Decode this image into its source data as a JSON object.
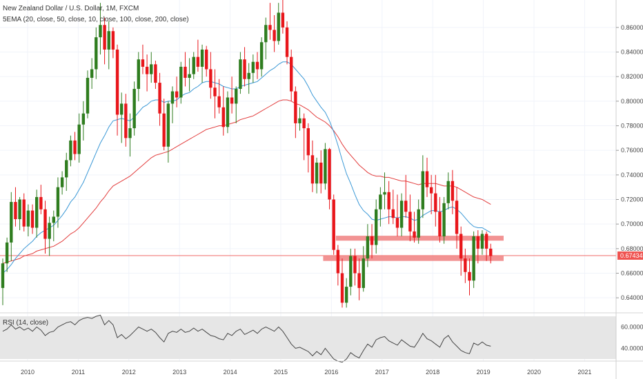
{
  "chart_data": {
    "type": "candlestick",
    "title": "New Zealand Dollar / U.S. Dollar, 1M, FXCM",
    "indicator_label": "5EMA (20, close, 50, close, 10, close, 100, close, 200, close)",
    "rsi_label": "RSI (14, close)",
    "price_axis_ticks": [
      "0.86000",
      "0.84000",
      "0.82000",
      "0.80000",
      "0.78000",
      "0.76000",
      "0.74000",
      "0.72000",
      "0.70000",
      "0.68000",
      "0.66000",
      "0.64000"
    ],
    "rsi_axis_ticks": [
      "60.0000",
      "40.0000"
    ],
    "time_axis_ticks": [
      "2010",
      "2011",
      "2012",
      "2013",
      "2014",
      "2015",
      "2016",
      "2017",
      "2018",
      "2019",
      "2020",
      "2021"
    ],
    "current_price": "0.67434",
    "ylim": [
      0.63,
      0.87
    ],
    "rsi_ylim": [
      30,
      70
    ],
    "colors": {
      "up": "#2f7d1f",
      "down": "#e8161b",
      "ema_fast": "#3a98d6",
      "ema_slow": "#e23b3b",
      "zone": "#f08080",
      "rsi_band": "#e6e6e6",
      "rsi_line": "#444444",
      "price_line": "#ef5350"
    },
    "candles": [
      [
        0.648,
        0.672,
        0.634,
        0.668
      ],
      [
        0.668,
        0.689,
        0.661,
        0.685
      ],
      [
        0.685,
        0.726,
        0.67,
        0.718
      ],
      [
        0.718,
        0.73,
        0.698,
        0.704
      ],
      [
        0.704,
        0.722,
        0.695,
        0.72
      ],
      [
        0.72,
        0.725,
        0.694,
        0.698
      ],
      [
        0.698,
        0.716,
        0.69,
        0.711
      ],
      [
        0.711,
        0.716,
        0.692,
        0.697
      ],
      [
        0.697,
        0.728,
        0.689,
        0.722
      ],
      [
        0.722,
        0.732,
        0.708,
        0.712
      ],
      [
        0.712,
        0.719,
        0.676,
        0.688
      ],
      [
        0.688,
        0.706,
        0.674,
        0.701
      ],
      [
        0.701,
        0.711,
        0.686,
        0.706
      ],
      [
        0.706,
        0.738,
        0.697,
        0.73
      ],
      [
        0.73,
        0.743,
        0.724,
        0.738
      ],
      [
        0.738,
        0.758,
        0.727,
        0.752
      ],
      [
        0.752,
        0.772,
        0.747,
        0.768
      ],
      [
        0.768,
        0.775,
        0.752,
        0.757
      ],
      [
        0.757,
        0.79,
        0.75,
        0.781
      ],
      [
        0.781,
        0.8,
        0.768,
        0.79
      ],
      [
        0.79,
        0.825,
        0.786,
        0.819
      ],
      [
        0.819,
        0.835,
        0.81,
        0.826
      ],
      [
        0.826,
        0.86,
        0.818,
        0.852
      ],
      [
        0.852,
        0.88,
        0.838,
        0.862
      ],
      [
        0.862,
        0.868,
        0.83,
        0.842
      ],
      [
        0.842,
        0.865,
        0.826,
        0.857
      ],
      [
        0.857,
        0.86,
        0.835,
        0.842
      ],
      [
        0.842,
        0.846,
        0.772,
        0.789
      ],
      [
        0.789,
        0.807,
        0.766,
        0.798
      ],
      [
        0.798,
        0.806,
        0.763,
        0.77
      ],
      [
        0.77,
        0.79,
        0.755,
        0.778
      ],
      [
        0.778,
        0.816,
        0.772,
        0.81
      ],
      [
        0.81,
        0.84,
        0.8,
        0.834
      ],
      [
        0.834,
        0.846,
        0.822,
        0.828
      ],
      [
        0.828,
        0.838,
        0.808,
        0.822
      ],
      [
        0.822,
        0.84,
        0.815,
        0.83
      ],
      [
        0.83,
        0.833,
        0.81,
        0.815
      ],
      [
        0.815,
        0.823,
        0.78,
        0.79
      ],
      [
        0.79,
        0.802,
        0.76,
        0.763
      ],
      [
        0.763,
        0.8,
        0.75,
        0.798
      ],
      [
        0.798,
        0.812,
        0.782,
        0.808
      ],
      [
        0.808,
        0.82,
        0.795,
        0.803
      ],
      [
        0.803,
        0.832,
        0.798,
        0.828
      ],
      [
        0.828,
        0.84,
        0.812,
        0.819
      ],
      [
        0.819,
        0.835,
        0.808,
        0.822
      ],
      [
        0.822,
        0.84,
        0.818,
        0.836
      ],
      [
        0.836,
        0.85,
        0.824,
        0.828
      ],
      [
        0.828,
        0.846,
        0.815,
        0.842
      ],
      [
        0.842,
        0.845,
        0.82,
        0.826
      ],
      [
        0.826,
        0.84,
        0.802,
        0.811
      ],
      [
        0.811,
        0.826,
        0.786,
        0.804
      ],
      [
        0.804,
        0.818,
        0.79,
        0.795
      ],
      [
        0.795,
        0.812,
        0.772,
        0.779
      ],
      [
        0.779,
        0.808,
        0.774,
        0.803
      ],
      [
        0.803,
        0.82,
        0.79,
        0.798
      ],
      [
        0.798,
        0.812,
        0.782,
        0.81
      ],
      [
        0.81,
        0.84,
        0.806,
        0.834
      ],
      [
        0.834,
        0.844,
        0.812,
        0.818
      ],
      [
        0.818,
        0.831,
        0.806,
        0.823
      ],
      [
        0.823,
        0.838,
        0.815,
        0.832
      ],
      [
        0.832,
        0.84,
        0.818,
        0.826
      ],
      [
        0.826,
        0.852,
        0.82,
        0.848
      ],
      [
        0.848,
        0.868,
        0.834,
        0.862
      ],
      [
        0.862,
        0.88,
        0.85,
        0.858
      ],
      [
        0.858,
        0.87,
        0.84,
        0.849
      ],
      [
        0.849,
        0.88,
        0.846,
        0.872
      ],
      [
        0.872,
        0.884,
        0.855,
        0.86
      ],
      [
        0.86,
        0.865,
        0.83,
        0.836
      ],
      [
        0.836,
        0.842,
        0.8,
        0.808
      ],
      [
        0.808,
        0.812,
        0.77,
        0.782
      ],
      [
        0.782,
        0.795,
        0.776,
        0.786
      ],
      [
        0.786,
        0.79,
        0.752,
        0.778
      ],
      [
        0.778,
        0.782,
        0.742,
        0.756
      ],
      [
        0.756,
        0.768,
        0.726,
        0.733
      ],
      [
        0.733,
        0.754,
        0.725,
        0.75
      ],
      [
        0.75,
        0.76,
        0.725,
        0.733
      ],
      [
        0.733,
        0.766,
        0.728,
        0.761
      ],
      [
        0.761,
        0.762,
        0.712,
        0.72
      ],
      [
        0.72,
        0.724,
        0.675,
        0.679
      ],
      [
        0.679,
        0.683,
        0.65,
        0.66
      ],
      [
        0.66,
        0.672,
        0.632,
        0.636
      ],
      [
        0.636,
        0.656,
        0.632,
        0.649
      ],
      [
        0.649,
        0.68,
        0.642,
        0.674
      ],
      [
        0.674,
        0.68,
        0.65,
        0.66
      ],
      [
        0.66,
        0.672,
        0.638,
        0.648
      ],
      [
        0.648,
        0.682,
        0.645,
        0.672
      ],
      [
        0.672,
        0.7,
        0.665,
        0.69
      ],
      [
        0.69,
        0.7,
        0.672,
        0.683
      ],
      [
        0.683,
        0.72,
        0.676,
        0.712
      ],
      [
        0.712,
        0.73,
        0.698,
        0.724
      ],
      [
        0.724,
        0.742,
        0.712,
        0.726
      ],
      [
        0.726,
        0.735,
        0.7,
        0.712
      ],
      [
        0.712,
        0.728,
        0.7,
        0.705
      ],
      [
        0.705,
        0.724,
        0.69,
        0.697
      ],
      [
        0.697,
        0.725,
        0.69,
        0.719
      ],
      [
        0.719,
        0.74,
        0.705,
        0.71
      ],
      [
        0.71,
        0.724,
        0.686,
        0.694
      ],
      [
        0.694,
        0.71,
        0.685,
        0.689
      ],
      [
        0.689,
        0.72,
        0.684,
        0.712
      ],
      [
        0.712,
        0.756,
        0.705,
        0.743
      ],
      [
        0.743,
        0.754,
        0.722,
        0.73
      ],
      [
        0.73,
        0.74,
        0.708,
        0.725
      ],
      [
        0.725,
        0.74,
        0.698,
        0.71
      ],
      [
        0.71,
        0.722,
        0.685,
        0.69
      ],
      [
        0.69,
        0.722,
        0.684,
        0.717
      ],
      [
        0.717,
        0.742,
        0.712,
        0.735
      ],
      [
        0.735,
        0.744,
        0.708,
        0.719
      ],
      [
        0.719,
        0.73,
        0.68,
        0.692
      ],
      [
        0.692,
        0.698,
        0.658,
        0.672
      ],
      [
        0.672,
        0.68,
        0.652,
        0.661
      ],
      [
        0.661,
        0.672,
        0.642,
        0.654
      ],
      [
        0.654,
        0.694,
        0.648,
        0.69
      ],
      [
        0.69,
        0.695,
        0.668,
        0.68
      ],
      [
        0.68,
        0.695,
        0.675,
        0.692
      ],
      [
        0.692,
        0.694,
        0.67,
        0.68
      ],
      [
        0.68,
        0.684,
        0.668,
        0.674
      ]
    ],
    "ema_fast": [
      0.66,
      0.663,
      0.667,
      0.672,
      0.676,
      0.68,
      0.683,
      0.686,
      0.69,
      0.693,
      0.695,
      0.697,
      0.699,
      0.703,
      0.707,
      0.712,
      0.718,
      0.722,
      0.728,
      0.734,
      0.742,
      0.75,
      0.758,
      0.766,
      0.772,
      0.779,
      0.784,
      0.785,
      0.786,
      0.785,
      0.784,
      0.787,
      0.791,
      0.795,
      0.797,
      0.8,
      0.801,
      0.801,
      0.799,
      0.8,
      0.8,
      0.801,
      0.804,
      0.806,
      0.807,
      0.81,
      0.812,
      0.815,
      0.816,
      0.816,
      0.815,
      0.814,
      0.812,
      0.811,
      0.81,
      0.81,
      0.812,
      0.813,
      0.814,
      0.815,
      0.816,
      0.819,
      0.822,
      0.825,
      0.827,
      0.83,
      0.832,
      0.832,
      0.83,
      0.826,
      0.822,
      0.818,
      0.812,
      0.805,
      0.8,
      0.795,
      0.791,
      0.784,
      0.775,
      0.764,
      0.752,
      0.741,
      0.733,
      0.724,
      0.716,
      0.711,
      0.708,
      0.704,
      0.703,
      0.704,
      0.705,
      0.706,
      0.706,
      0.705,
      0.706,
      0.706,
      0.705,
      0.703,
      0.704,
      0.707,
      0.709,
      0.711,
      0.711,
      0.71,
      0.711,
      0.713,
      0.714,
      0.712,
      0.709,
      0.705,
      0.701,
      0.698,
      0.697,
      0.697,
      0.695,
      0.693
    ],
    "ema_slow": [
      0.668,
      0.669,
      0.67,
      0.671,
      0.672,
      0.674,
      0.675,
      0.676,
      0.678,
      0.679,
      0.68,
      0.681,
      0.682,
      0.684,
      0.686,
      0.689,
      0.692,
      0.694,
      0.697,
      0.701,
      0.705,
      0.709,
      0.713,
      0.718,
      0.722,
      0.727,
      0.731,
      0.733,
      0.735,
      0.737,
      0.739,
      0.742,
      0.745,
      0.748,
      0.751,
      0.754,
      0.756,
      0.757,
      0.758,
      0.759,
      0.761,
      0.763,
      0.765,
      0.767,
      0.769,
      0.771,
      0.773,
      0.775,
      0.777,
      0.778,
      0.779,
      0.78,
      0.78,
      0.781,
      0.782,
      0.783,
      0.785,
      0.786,
      0.787,
      0.788,
      0.79,
      0.792,
      0.794,
      0.796,
      0.798,
      0.8,
      0.801,
      0.801,
      0.8,
      0.798,
      0.797,
      0.795,
      0.793,
      0.79,
      0.787,
      0.785,
      0.783,
      0.78,
      0.776,
      0.771,
      0.765,
      0.76,
      0.756,
      0.752,
      0.748,
      0.745,
      0.742,
      0.74,
      0.739,
      0.739,
      0.738,
      0.738,
      0.737,
      0.736,
      0.735,
      0.735,
      0.734,
      0.733,
      0.732,
      0.733,
      0.733,
      0.733,
      0.733,
      0.732,
      0.731,
      0.731,
      0.731,
      0.73,
      0.728,
      0.726,
      0.724,
      0.722,
      0.721,
      0.72,
      0.718,
      0.716
    ],
    "rsi": [
      56,
      58,
      62,
      58,
      60,
      57,
      59,
      56,
      60,
      57,
      52,
      55,
      56,
      60,
      62,
      64,
      65,
      62,
      66,
      68,
      69,
      68,
      70,
      71,
      62,
      66,
      62,
      50,
      53,
      49,
      52,
      56,
      60,
      58,
      56,
      58,
      55,
      50,
      46,
      54,
      56,
      55,
      58,
      55,
      56,
      59,
      56,
      58,
      55,
      52,
      51,
      49,
      48,
      54,
      52,
      56,
      58,
      53,
      55,
      57,
      54,
      58,
      60,
      58,
      56,
      60,
      56,
      50,
      44,
      40,
      41,
      39,
      37,
      33,
      37,
      34,
      40,
      35,
      30,
      28,
      27,
      30,
      36,
      33,
      31,
      38,
      44,
      41,
      48,
      50,
      51,
      47,
      45,
      43,
      48,
      45,
      42,
      41,
      47,
      54,
      49,
      47,
      44,
      41,
      49,
      52,
      46,
      42,
      38,
      36,
      35,
      45,
      43,
      46,
      43,
      42
    ],
    "zones": [
      {
        "low": 0.6865,
        "high": 0.6905,
        "start_index": 79,
        "end_index": 124
      },
      {
        "low": 0.67,
        "high": 0.674,
        "start_index": 76,
        "end_index": 124
      }
    ]
  }
}
